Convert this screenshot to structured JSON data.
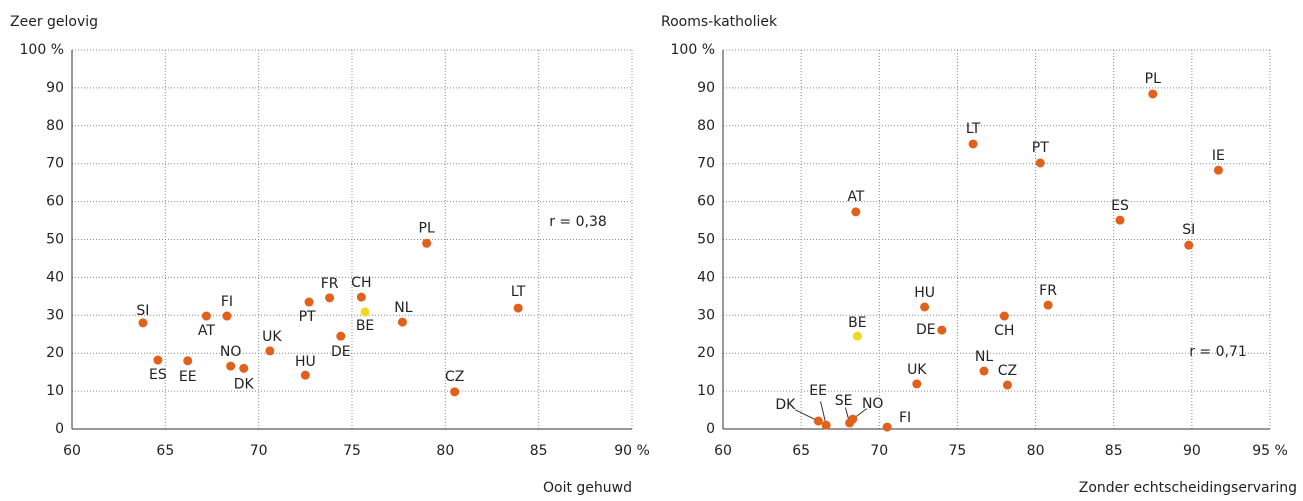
{
  "chart_data": [
    {
      "type": "scatter",
      "title": "Zeer gelovig",
      "x_label": "Ooit gehuwd",
      "annotation": "r = 0,38",
      "labels": [
        "SI",
        "ES",
        "EE",
        "AT",
        "FI",
        "NO",
        "DK",
        "UK",
        "HU",
        "PT",
        "FR",
        "DE",
        "CH",
        "BE",
        "NL",
        "PL",
        "CZ",
        "LT"
      ],
      "x": [
        63.8,
        64.6,
        66.2,
        67.2,
        68.3,
        68.5,
        69.2,
        70.6,
        72.5,
        72.7,
        73.8,
        74.4,
        75.5,
        75.7,
        77.7,
        79.0,
        80.5,
        83.9
      ],
      "values": [
        28,
        18.2,
        18,
        29.8,
        29.8,
        16.6,
        16,
        20.6,
        14.2,
        33.5,
        34.6,
        24.5,
        34.8,
        30.9,
        28.2,
        49,
        9.8,
        31.9
      ],
      "colors": [
        "#e0601c",
        "#e0601c",
        "#e0601c",
        "#e0601c",
        "#e0601c",
        "#e0601c",
        "#e0601c",
        "#e0601c",
        "#e0601c",
        "#e0601c",
        "#e0601c",
        "#e0601c",
        "#e0601c",
        "#f0d81c",
        "#e0601c",
        "#e0601c",
        "#e0601c",
        "#e0601c"
      ],
      "xlim": [
        60,
        90
      ],
      "xticks": [
        60,
        65,
        70,
        75,
        80,
        85,
        {
          "value": 90,
          "label": "90 %"
        }
      ],
      "ylim": [
        0,
        100
      ],
      "yticks": [
        0,
        10,
        20,
        30,
        40,
        50,
        60,
        70,
        80,
        90,
        {
          "value": 100,
          "label": "100 %"
        }
      ],
      "grid": true
    },
    {
      "type": "scatter",
      "title": "Rooms-katholiek",
      "x_label": "Zonder echtscheidingservaring",
      "annotation": "r = 0,71",
      "labels": [
        "AT",
        "BE",
        "PL",
        "IE",
        "SI",
        "ES",
        "LT",
        "PT",
        "FR",
        "CH",
        "HU",
        "DE",
        "UK",
        "NL",
        "CZ",
        "DK",
        "EE",
        "SE",
        "NO",
        "FI"
      ],
      "x": [
        68.5,
        68.6,
        87.5,
        91.7,
        89.8,
        85.4,
        76,
        80.3,
        80.8,
        78,
        72.9,
        74,
        72.4,
        76.7,
        78.2,
        66.1,
        66.6,
        68.1,
        68.3,
        70.5
      ],
      "values": [
        57.3,
        24.5,
        88.4,
        68.3,
        48.5,
        55.1,
        75.2,
        70.2,
        32.7,
        29.8,
        32.2,
        26.1,
        11.9,
        15.3,
        11.6,
        2.1,
        1,
        1.6,
        2.6,
        0.5
      ],
      "colors": [
        "#e0601c",
        "#f0d81c",
        "#e0601c",
        "#e0601c",
        "#e0601c",
        "#e0601c",
        "#e0601c",
        "#e0601c",
        "#e0601c",
        "#e0601c",
        "#e0601c",
        "#e0601c",
        "#e0601c",
        "#e0601c",
        "#e0601c",
        "#e0601c",
        "#e0601c",
        "#e0601c",
        "#e0601c",
        "#e0601c"
      ],
      "xlim": [
        60,
        95
      ],
      "xticks": [
        60,
        65,
        70,
        75,
        80,
        85,
        90,
        {
          "value": 95,
          "label": "95 %"
        }
      ],
      "ylim": [
        0,
        100
      ],
      "yticks": [
        0,
        10,
        20,
        30,
        40,
        50,
        60,
        70,
        80,
        90,
        {
          "value": 100,
          "label": "100 %"
        }
      ],
      "grid": true
    }
  ]
}
